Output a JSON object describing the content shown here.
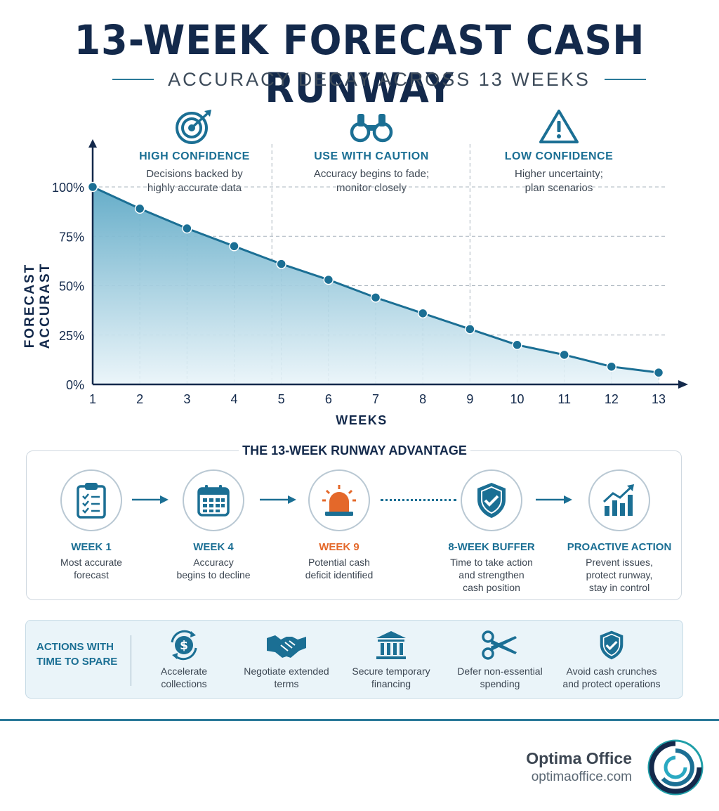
{
  "title": "13-WEEK FORECAST CASH RUNWAY",
  "subtitle": "ACCURACY DECAY ACROSS 13 WEEKS",
  "zones": [
    {
      "heading": "HIGH CONFIDENCE",
      "line1": "Decisions backed by",
      "line2": "highly accurate data",
      "icon": "target-icon"
    },
    {
      "heading": "USE WITH CAUTION",
      "line1": "Accuracy begins to fade;",
      "line2": "monitor closely",
      "icon": "binoculars-icon"
    },
    {
      "heading": "LOW CONFIDENCE",
      "line1": "Higher uncertainty;",
      "line2": "plan scenarios",
      "icon": "warning-icon"
    }
  ],
  "chart_data": {
    "type": "area",
    "x": [
      1,
      2,
      3,
      4,
      5,
      6,
      7,
      8,
      9,
      10,
      11,
      12,
      13
    ],
    "series": [
      {
        "values": [
          100,
          89,
          79,
          70,
          61,
          53,
          44,
          36,
          28,
          20,
          15,
          9,
          6
        ]
      }
    ],
    "xlabel": "WEEKS",
    "ylabel": "FORECAST ACCURAST",
    "x_ticks": [
      "1",
      "2",
      "3",
      "4",
      "5",
      "6",
      "7",
      "8",
      "9",
      "10",
      "11",
      "12",
      "13"
    ],
    "y_ticks": [
      "0%",
      "25%",
      "50%",
      "75%",
      "100%"
    ],
    "y_tick_values": [
      0,
      25,
      50,
      75,
      100
    ],
    "xlim": [
      1,
      13
    ],
    "ylim": [
      0,
      100
    ],
    "zone_boundaries": [
      4.8,
      9
    ],
    "grid": "dashed",
    "colors": {
      "line": "#1b6f94",
      "fill": "#5ea9c6",
      "point": "#1b6f94"
    }
  },
  "advantage": {
    "title": "THE 13-WEEK RUNWAY ADVANTAGE",
    "steps": [
      {
        "label": "WEEK 1",
        "lines": [
          "Most accurate",
          "forecast"
        ],
        "icon": "clipboard-icon"
      },
      {
        "label": "WEEK 4",
        "lines": [
          "Accuracy",
          "begins to decline"
        ],
        "icon": "calendar-icon"
      },
      {
        "label": "WEEK 9",
        "lines": [
          "Potential cash",
          "deficit identified"
        ],
        "icon": "alarm-icon"
      },
      {
        "label": "8-WEEK BUFFER",
        "lines": [
          "Time to take action",
          "and strengthen",
          "cash position"
        ],
        "icon": "shield-check-icon"
      },
      {
        "label": "PROACTIVE ACTION",
        "lines": [
          "Prevent issues,",
          "protect runway,",
          "stay in control"
        ],
        "icon": "growth-chart-icon"
      }
    ]
  },
  "actions": {
    "title_line1": "ACTIONS WITH",
    "title_line2": "TIME TO SPARE",
    "items": [
      {
        "lines": [
          "Accelerate",
          "collections"
        ],
        "icon": "dollar-cycle-icon"
      },
      {
        "lines": [
          "Negotiate extended",
          "terms"
        ],
        "icon": "handshake-icon"
      },
      {
        "lines": [
          "Secure temporary",
          "financing"
        ],
        "icon": "bank-icon"
      },
      {
        "lines": [
          "Defer non-essential",
          "spending"
        ],
        "icon": "scissors-icon"
      },
      {
        "lines": [
          "Avoid cash crunches",
          "and protect operations"
        ],
        "icon": "shield-check-icon"
      }
    ]
  },
  "brand": {
    "name": "Optima Office",
    "url": "optimaoffice.com"
  },
  "colors": {
    "navy": "#13294b",
    "teal": "#1b6f94",
    "orange": "#e4682a"
  }
}
